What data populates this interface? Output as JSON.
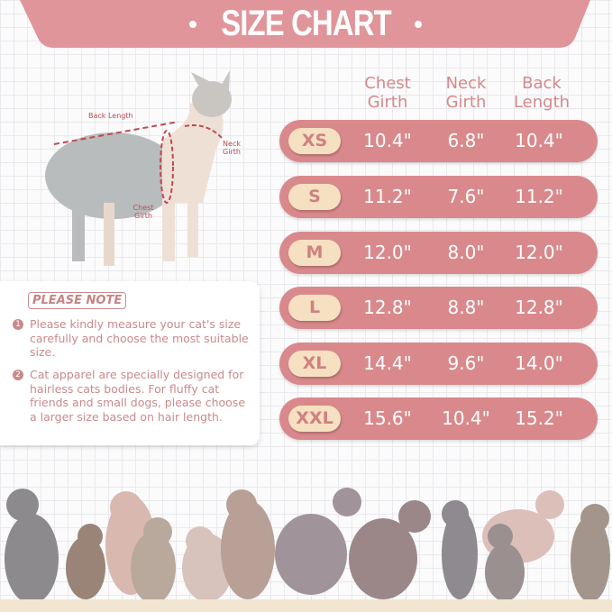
{
  "title": "SIZE CHART",
  "colors": {
    "banner": "#e0959a",
    "row": "#d9898c",
    "pill": "#f6e0c2",
    "text": "#c98a8c"
  },
  "diagram": {
    "back_length": "Back Length",
    "neck_girth": "Neck Girth",
    "chest_girth": "Chest Girth"
  },
  "table": {
    "headers": [
      "Chest Girth",
      "Neck Girth",
      "Back Length"
    ],
    "rows": [
      {
        "size": "XS",
        "chest": "10.4\"",
        "neck": "6.8\"",
        "back": "10.4\""
      },
      {
        "size": "S",
        "chest": "11.2\"",
        "neck": "7.6\"",
        "back": "11.2\""
      },
      {
        "size": "M",
        "chest": "12.0\"",
        "neck": "8.0\"",
        "back": "12.0\""
      },
      {
        "size": "L",
        "chest": "12.8\"",
        "neck": "8.8\"",
        "back": "12.8\""
      },
      {
        "size": "XL",
        "chest": "14.4\"",
        "neck": "9.6\"",
        "back": "14.0\""
      },
      {
        "size": "XXL",
        "chest": "15.6\"",
        "neck": "10.4\"",
        "back": "15.2\""
      }
    ]
  },
  "note": {
    "title": "PLEASE NOTE",
    "items": [
      {
        "num": "1",
        "text": "Please kindly measure your cat's size carefully and choose the most suitable size."
      },
      {
        "num": "2",
        "text": "Cat apparel are specially designed for hairless cats bodies. For fluffy cat friends and small dogs, please choose a larger size based on hair length."
      }
    ]
  }
}
